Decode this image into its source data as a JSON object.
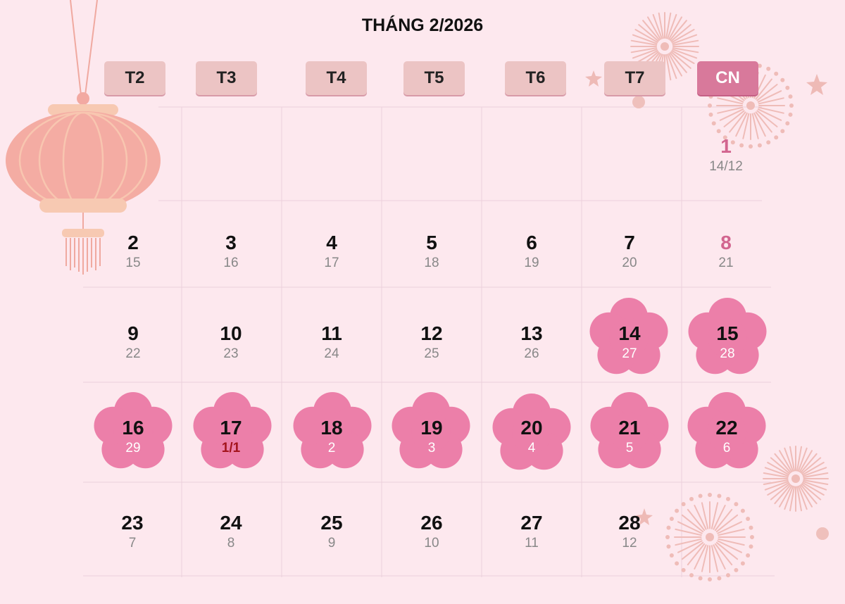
{
  "title": "THÁNG 2/2026",
  "weekdays": [
    "T2",
    "T3",
    "T4",
    "T5",
    "T6",
    "T7",
    "CN"
  ],
  "colors": {
    "background": "#fde8ee",
    "header_tab": "#ecc4c4",
    "header_sunday": "#d8799b",
    "flower": "#ec7fa9",
    "sunday_text": "#d2658f",
    "tet_lunar": "#a3141c"
  },
  "days": {
    "d1": {
      "solar": "1",
      "lunar": "14/12"
    },
    "d2": {
      "solar": "2",
      "lunar": "15"
    },
    "d3": {
      "solar": "3",
      "lunar": "16"
    },
    "d4": {
      "solar": "4",
      "lunar": "17"
    },
    "d5": {
      "solar": "5",
      "lunar": "18"
    },
    "d6": {
      "solar": "6",
      "lunar": "19"
    },
    "d7": {
      "solar": "7",
      "lunar": "20"
    },
    "d8": {
      "solar": "8",
      "lunar": "21"
    },
    "d9": {
      "solar": "9",
      "lunar": "22"
    },
    "d10": {
      "solar": "10",
      "lunar": "23"
    },
    "d11": {
      "solar": "11",
      "lunar": "24"
    },
    "d12": {
      "solar": "12",
      "lunar": "25"
    },
    "d13": {
      "solar": "13",
      "lunar": "26"
    },
    "d14": {
      "solar": "14",
      "lunar": "27"
    },
    "d15": {
      "solar": "15",
      "lunar": "28"
    },
    "d16": {
      "solar": "16",
      "lunar": "29"
    },
    "d17": {
      "solar": "17",
      "lunar": "1/1"
    },
    "d18": {
      "solar": "18",
      "lunar": "2"
    },
    "d19": {
      "solar": "19",
      "lunar": "3"
    },
    "d20": {
      "solar": "20",
      "lunar": "4"
    },
    "d21": {
      "solar": "21",
      "lunar": "5"
    },
    "d22": {
      "solar": "22",
      "lunar": "6"
    },
    "d23": {
      "solar": "23",
      "lunar": "7"
    },
    "d24": {
      "solar": "24",
      "lunar": "8"
    },
    "d25": {
      "solar": "25",
      "lunar": "9"
    },
    "d26": {
      "solar": "26",
      "lunar": "10"
    },
    "d27": {
      "solar": "27",
      "lunar": "11"
    },
    "d28": {
      "solar": "28",
      "lunar": "12"
    }
  }
}
